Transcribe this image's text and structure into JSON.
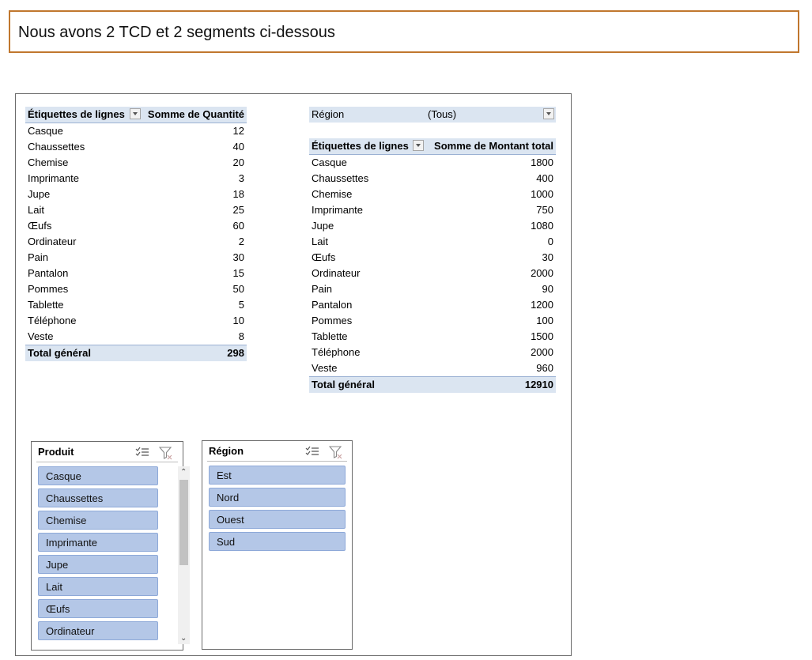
{
  "banner": {
    "text": "Nous avons 2 TCD et 2 segments ci-dessous"
  },
  "pivot1": {
    "header_label": "Étiquettes de lignes",
    "header_value": "Somme de Quantité",
    "rows": [
      {
        "label": "Casque",
        "value": "12"
      },
      {
        "label": "Chaussettes",
        "value": "40"
      },
      {
        "label": "Chemise",
        "value": "20"
      },
      {
        "label": "Imprimante",
        "value": "3"
      },
      {
        "label": "Jupe",
        "value": "18"
      },
      {
        "label": "Lait",
        "value": "25"
      },
      {
        "label": "Œufs",
        "value": "60"
      },
      {
        "label": "Ordinateur",
        "value": "2"
      },
      {
        "label": "Pain",
        "value": "30"
      },
      {
        "label": "Pantalon",
        "value": "15"
      },
      {
        "label": "Pommes",
        "value": "50"
      },
      {
        "label": "Tablette",
        "value": "5"
      },
      {
        "label": "Téléphone",
        "value": "10"
      },
      {
        "label": "Veste",
        "value": "8"
      }
    ],
    "total_label": "Total général",
    "total_value": "298"
  },
  "pivot2": {
    "filter_label": "Région",
    "filter_value": "(Tous)",
    "header_label": "Étiquettes de lignes",
    "header_value": "Somme de Montant total",
    "rows": [
      {
        "label": "Casque",
        "value": "1800"
      },
      {
        "label": "Chaussettes",
        "value": "400"
      },
      {
        "label": "Chemise",
        "value": "1000"
      },
      {
        "label": "Imprimante",
        "value": "750"
      },
      {
        "label": "Jupe",
        "value": "1080"
      },
      {
        "label": "Lait",
        "value": "0"
      },
      {
        "label": "Œufs",
        "value": "30"
      },
      {
        "label": "Ordinateur",
        "value": "2000"
      },
      {
        "label": "Pain",
        "value": "90"
      },
      {
        "label": "Pantalon",
        "value": "1200"
      },
      {
        "label": "Pommes",
        "value": "100"
      },
      {
        "label": "Tablette",
        "value": "1500"
      },
      {
        "label": "Téléphone",
        "value": "2000"
      },
      {
        "label": "Veste",
        "value": "960"
      }
    ],
    "total_label": "Total général",
    "total_value": "12910"
  },
  "slicer_produit": {
    "title": "Produit",
    "items": [
      "Casque",
      "Chaussettes",
      "Chemise",
      "Imprimante",
      "Jupe",
      "Lait",
      "Œufs",
      "Ordinateur"
    ]
  },
  "slicer_region": {
    "title": "Région",
    "items": [
      "Est",
      "Nord",
      "Ouest",
      "Sud"
    ]
  },
  "icons": {
    "multiselect": "multi-select-icon",
    "clear_filter": "clear-filter-icon",
    "dropdown": "dropdown-arrow-icon"
  },
  "colors": {
    "banner_border": "#c0772e",
    "pivot_header": "#dbe5f1",
    "slicer_item": "#b4c7e7"
  }
}
